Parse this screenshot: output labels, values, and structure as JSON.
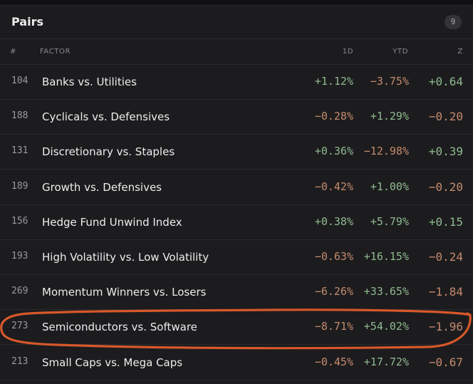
{
  "header": {
    "title": "Pairs",
    "count": "9"
  },
  "columns": {
    "num": "#",
    "factor": "FACTOR",
    "d1": "1D",
    "ytd": "YTD",
    "z": "Z"
  },
  "colors": {
    "positive": "#8fb98f",
    "negative": "#c58a6e",
    "annotation": "#d8582a"
  },
  "rows": [
    {
      "num": "104",
      "factor": "Banks vs. Utilities",
      "d1": "+1.12%",
      "ytd": "−3.75%",
      "z": "+0.64"
    },
    {
      "num": "188",
      "factor": "Cyclicals vs. Defensives",
      "d1": "−0.28%",
      "ytd": "+1.29%",
      "z": "−0.20"
    },
    {
      "num": "131",
      "factor": "Discretionary vs. Staples",
      "d1": "+0.36%",
      "ytd": "−12.98%",
      "z": "+0.39"
    },
    {
      "num": "189",
      "factor": "Growth vs. Defensives",
      "d1": "−0.42%",
      "ytd": "+1.00%",
      "z": "−0.20"
    },
    {
      "num": "156",
      "factor": "Hedge Fund Unwind Index",
      "d1": "+0.38%",
      "ytd": "+5.79%",
      "z": "+0.15"
    },
    {
      "num": "193",
      "factor": "High Volatility vs. Low Volatility",
      "d1": "−0.63%",
      "ytd": "+16.15%",
      "z": "−0.24"
    },
    {
      "num": "269",
      "factor": "Momentum Winners vs. Losers",
      "d1": "−6.26%",
      "ytd": "+33.65%",
      "z": "−1.84"
    },
    {
      "num": "273",
      "factor": "Semiconductors vs. Software",
      "d1": "−8.71%",
      "ytd": "+54.02%",
      "z": "−1.96"
    },
    {
      "num": "213",
      "factor": "Small Caps vs. Mega Caps",
      "d1": "−0.45%",
      "ytd": "+17.72%",
      "z": "−0.67"
    }
  ]
}
